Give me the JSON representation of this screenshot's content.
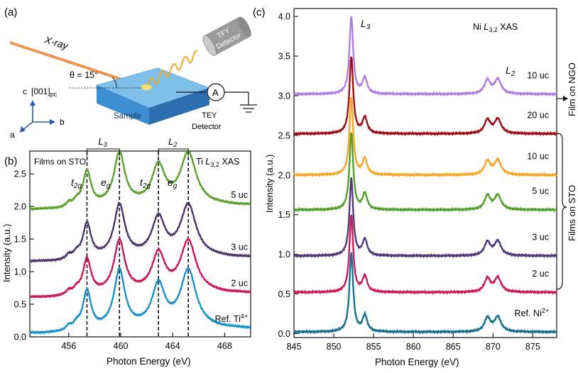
{
  "panel_a": {
    "label": "(a)",
    "xray_label": "X-ray",
    "angle_label": "θ = 15°",
    "axis_c_label": "c",
    "axis_dir_label": "[001]",
    "axis_dir_sub": "pc",
    "axis_a_label": "a",
    "axis_b_label": "b",
    "sample_label": "Sample",
    "tfy_line1": "TFY",
    "tfy_line2": "Detector",
    "ammeter_label": "A",
    "tey_line1": "TEY",
    "tey_line2": "Detector"
  },
  "chart_data": [
    {
      "panel": "(b)",
      "type": "line",
      "title": "Ti L3,2 XAS",
      "title_main": "Ti ",
      "title_L": "L",
      "title_sub": "3,2",
      "title_tail": " XAS",
      "inset_label": "Films on STO",
      "xlabel": "Photon Energy (eV)",
      "ylabel": "Intensity (a.u.)",
      "xlim": [
        453,
        470
      ],
      "ylim": [
        0,
        2.85
      ],
      "xticks": [
        "456",
        "460",
        "464",
        "468"
      ],
      "xtick_values": [
        456,
        460,
        464,
        468
      ],
      "yticks": [
        "0.0",
        "0.5",
        "1.0",
        "1.5",
        "2.0",
        "2.5"
      ],
      "ytick_values": [
        0,
        0.5,
        1.0,
        1.5,
        2.0,
        2.5
      ],
      "edge_labels": {
        "L3": {
          "main": "L",
          "sub": "3"
        },
        "L2": {
          "main": "L",
          "sub": "2"
        }
      },
      "peak_labels": {
        "t2g_a": {
          "main": "t",
          "sub": "2g"
        },
        "eg_a": {
          "main": "e",
          "sub": "g"
        },
        "t2g_b": {
          "main": "t",
          "sub": "2g"
        },
        "eg_b": {
          "main": "e",
          "sub": "g"
        }
      },
      "dashed_lines_eV": [
        457.4,
        459.9,
        462.9,
        465.2
      ],
      "series": [
        {
          "name": "5 uc",
          "color": "#5aa02c",
          "offset": 1.95,
          "scale": 0.9
        },
        {
          "name": "3 uc",
          "color": "#4a3468",
          "offset": 1.15,
          "scale": 0.9
        },
        {
          "name": "2 uc",
          "color": "#c8185c",
          "offset": 0.6,
          "scale": 0.9
        },
        {
          "name": "Ref. Ti",
          "sup": "4+",
          "color": "#1a8fc8",
          "offset": 0.05,
          "scale": 1.0
        }
      ],
      "peaks": [
        {
          "center_eV": 456.0,
          "height": 0.08,
          "width": 0.25
        },
        {
          "center_eV": 456.6,
          "height": 0.1,
          "width": 0.3
        },
        {
          "center_eV": 457.4,
          "height": 0.68,
          "width": 0.38
        },
        {
          "center_eV": 459.9,
          "height": 0.98,
          "width": 0.5
        },
        {
          "center_eV": 462.9,
          "height": 0.72,
          "width": 0.6
        },
        {
          "center_eV": 465.2,
          "height": 0.98,
          "width": 0.72
        }
      ]
    },
    {
      "panel": "(c)",
      "type": "line",
      "title": "Ni L3,2 XAS",
      "title_main": "Ni ",
      "title_L": "L",
      "title_sub": "3,2",
      "title_tail": " XAS",
      "xlabel": "Photon Energy (eV)",
      "ylabel": "Intensity (a.u.)",
      "xlim": [
        845,
        878
      ],
      "ylim": [
        -0.05,
        4.1
      ],
      "xticks": [
        "845",
        "850",
        "855",
        "860",
        "865",
        "870",
        "875"
      ],
      "xtick_values": [
        845,
        850,
        855,
        860,
        865,
        870,
        875
      ],
      "yticks": [
        "0.0",
        "0.5",
        "1.0",
        "1.5",
        "2.0",
        "2.5",
        "3.0",
        "3.5",
        "4.0"
      ],
      "ytick_values": [
        0,
        0.5,
        1.0,
        1.5,
        2.0,
        2.5,
        3.0,
        3.5,
        4.0
      ],
      "edge_labels": {
        "L3": {
          "main": "L",
          "sub": "3"
        },
        "L2": {
          "main": "L",
          "sub": "2"
        }
      },
      "side_labels": {
        "ngo": "Film on NGO",
        "sto": "Films on STO"
      },
      "series": [
        {
          "name": "10 uc",
          "color": "#b07ee0",
          "offset": 3.02,
          "scale": 0.98,
          "group": "NGO"
        },
        {
          "name": "20 uc",
          "color": "#9e0e16",
          "offset": 2.52,
          "scale": 0.98,
          "group": "STO"
        },
        {
          "name": "10 uc",
          "color": "#f5a623",
          "offset": 2.0,
          "scale": 0.98,
          "group": "STO"
        },
        {
          "name": "5 uc",
          "color": "#52a02a",
          "offset": 1.56,
          "scale": 0.98,
          "group": "STO"
        },
        {
          "name": "3 uc",
          "color": "#4e3a78",
          "offset": 0.98,
          "scale": 0.98,
          "group": "STO"
        },
        {
          "name": "2 uc",
          "color": "#cc1a5a",
          "offset": 0.52,
          "scale": 0.98,
          "group": "STO"
        },
        {
          "name": "Ref. Ni",
          "sup": "2+",
          "color": "#1a6e8e",
          "offset": 0.02,
          "scale": 1.0,
          "group": "Ref"
        }
      ],
      "peaks": [
        {
          "center_eV": 852.2,
          "height": 0.97,
          "width": 0.28
        },
        {
          "center_eV": 853.9,
          "height": 0.2,
          "width": 0.35
        },
        {
          "center_eV": 869.3,
          "height": 0.17,
          "width": 0.45
        },
        {
          "center_eV": 870.6,
          "height": 0.18,
          "width": 0.5
        }
      ]
    }
  ]
}
